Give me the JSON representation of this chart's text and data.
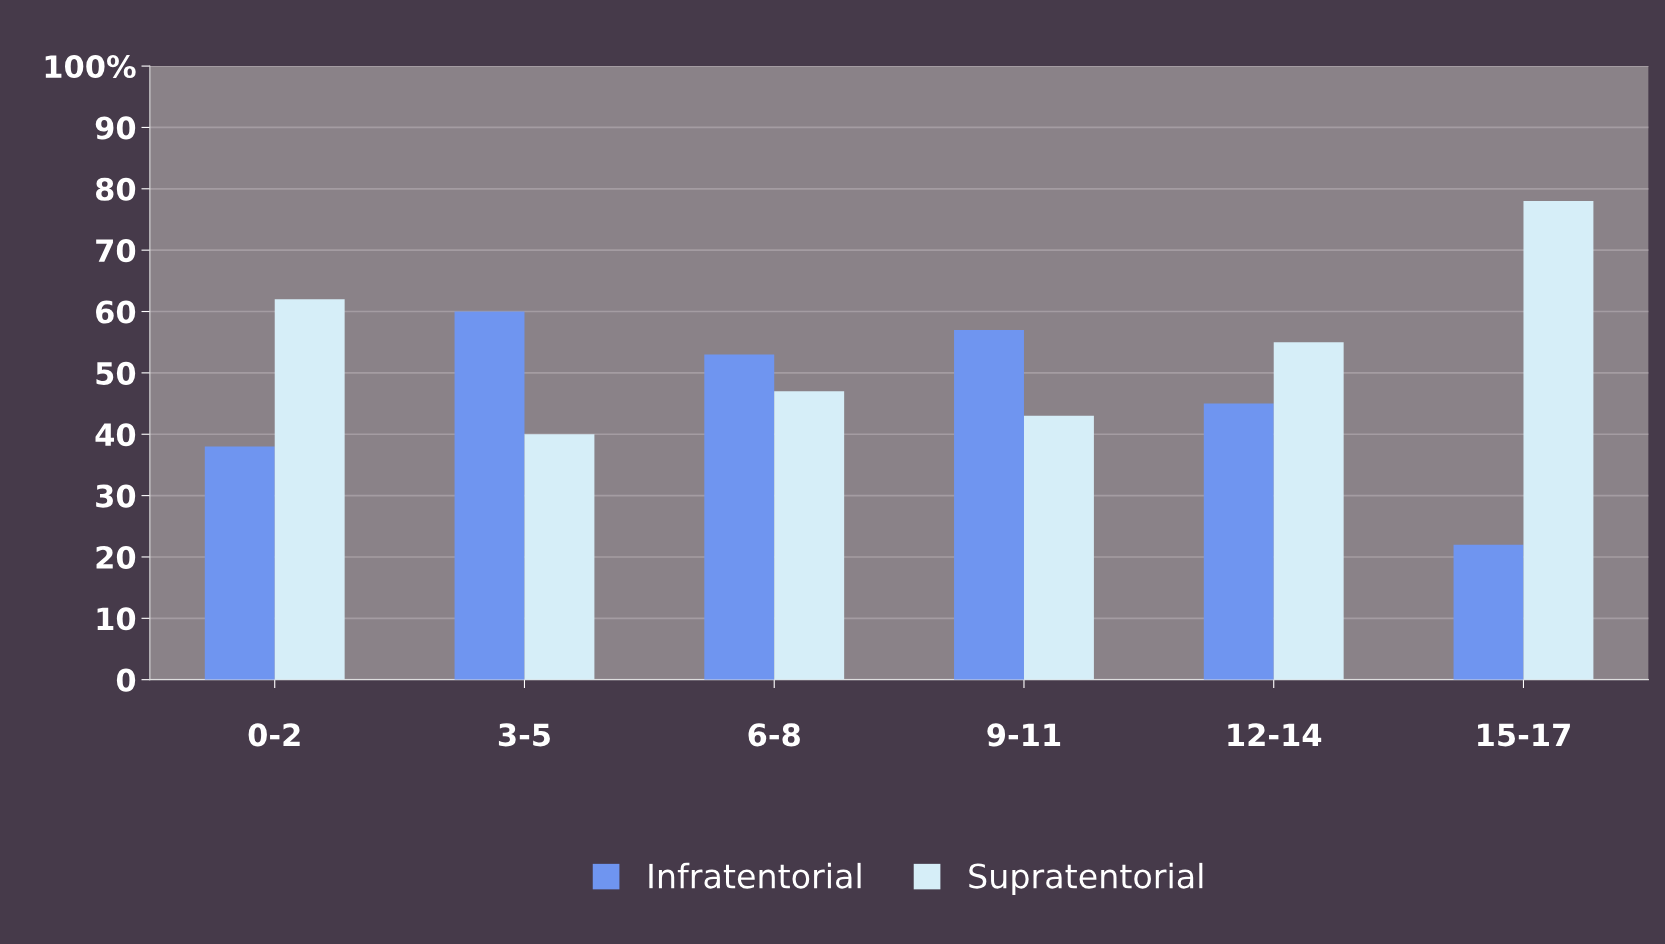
{
  "chart_data": {
    "type": "bar",
    "categories": [
      "0-2",
      "3-5",
      "6-8",
      "9-11",
      "12-14",
      "15-17"
    ],
    "series": [
      {
        "name": "Infratentorial",
        "color": "#6f95f0",
        "values": [
          38,
          60,
          53,
          57,
          45,
          22
        ]
      },
      {
        "name": "Supratentorial",
        "color": "#d6eef8",
        "values": [
          62,
          40,
          47,
          43,
          55,
          78
        ]
      }
    ],
    "ylim": [
      0,
      100
    ],
    "yticks": [
      0,
      10,
      20,
      30,
      40,
      50,
      60,
      70,
      80,
      90,
      {
        "value": 100,
        "label": "100%"
      }
    ],
    "grid": "y",
    "legend": "bottom"
  }
}
